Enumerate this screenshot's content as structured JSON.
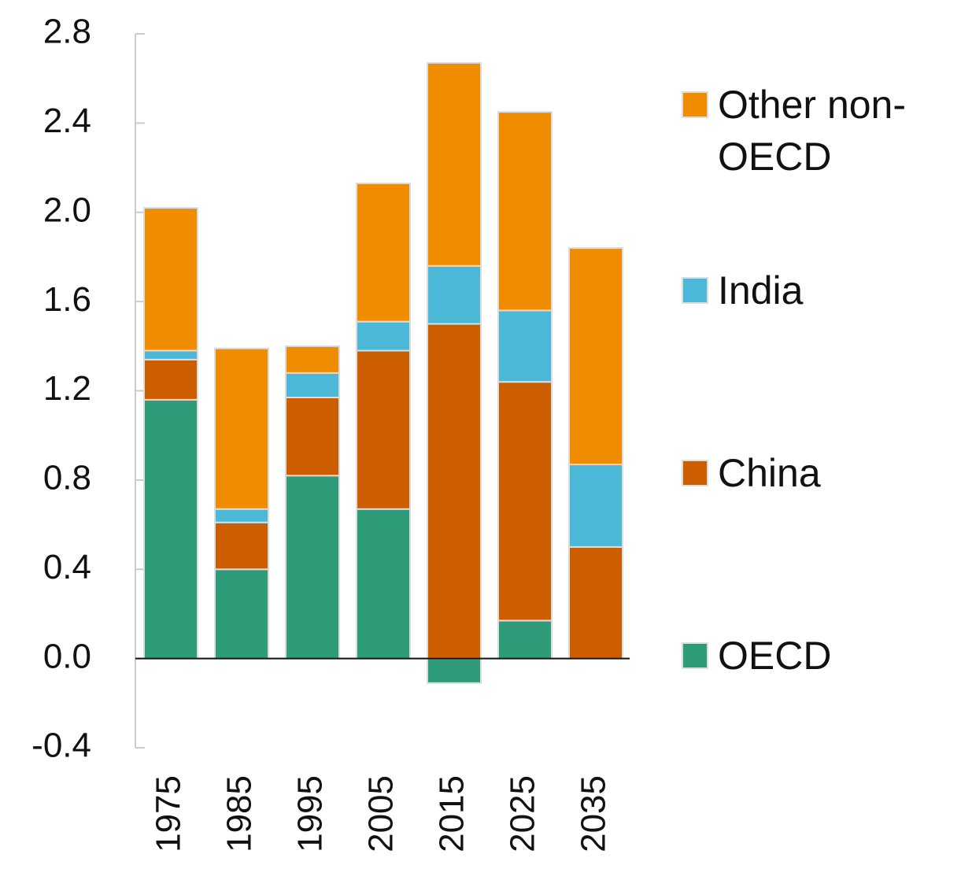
{
  "chart_data": {
    "type": "stacked_bar",
    "categories": [
      "1975",
      "1985",
      "1995",
      "2005",
      "2015",
      "2025",
      "2035"
    ],
    "series": [
      {
        "name": "OECD",
        "color": "#2e9c78",
        "values": [
          1.16,
          0.4,
          0.82,
          0.67,
          -0.11,
          0.17,
          0
        ]
      },
      {
        "name": "China",
        "color": "#cc5e00",
        "values": [
          0.18,
          0.21,
          0.35,
          0.71,
          1.5,
          1.07,
          0.5
        ]
      },
      {
        "name": "India",
        "color": "#4cb8d8",
        "values": [
          0.04,
          0.06,
          0.11,
          0.13,
          0.26,
          0.32,
          0.37
        ]
      },
      {
        "name": "Other non-OECD",
        "color": "#f08c00",
        "values": [
          0.64,
          0.72,
          0.12,
          0.62,
          0.91,
          0.89,
          0.97
        ]
      }
    ],
    "ylim": [
      -0.4,
      2.8
    ],
    "yticks": [
      -0.4,
      {
        "value": 0,
        "label": "0.0"
      },
      0.4,
      0.8,
      1.2,
      1.6,
      {
        "value": 2,
        "label": "2.0"
      },
      2.4,
      2.8
    ],
    "legend": "right"
  }
}
